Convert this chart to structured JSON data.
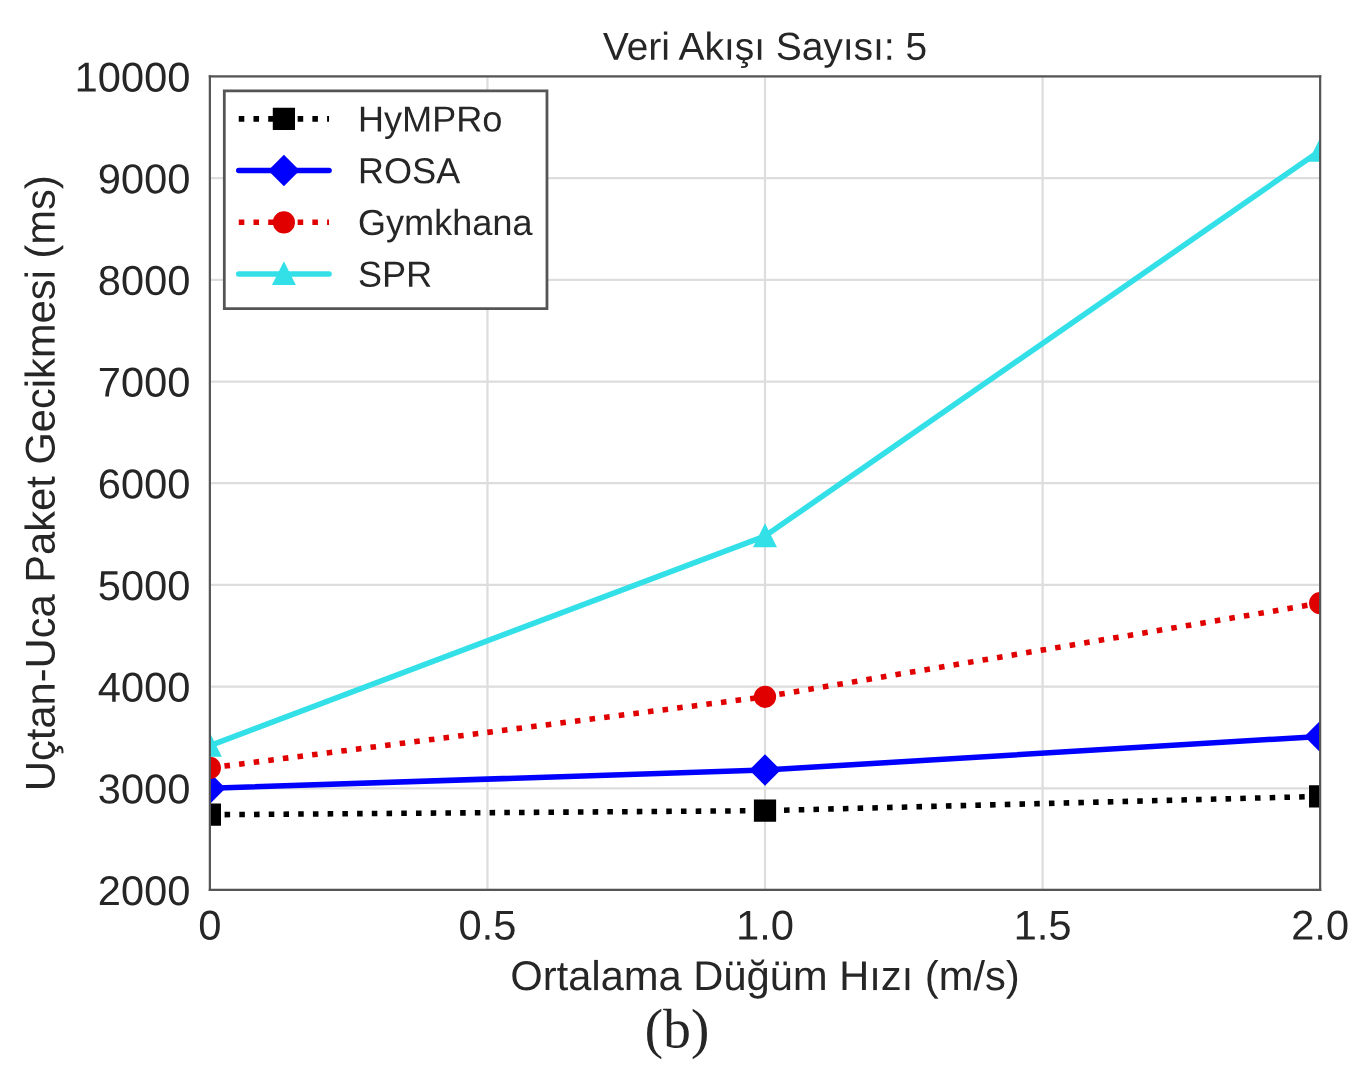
{
  "chart_data": {
    "type": "line",
    "title": "Veri Akışı Sayısı: 5",
    "xlabel": "Ortalama Düğüm Hızı (m/s)",
    "ylabel": "Uçtan-Uca Paket Gecikmesi (ms)",
    "annotations": [
      "(b)"
    ],
    "x": [
      0,
      1.0,
      2.0
    ],
    "series": [
      {
        "name": "HyMPRo",
        "color": "#000000",
        "values": [
          2740,
          2780,
          2920
        ],
        "marker": "square",
        "line_style": "dotted"
      },
      {
        "name": "ROSA",
        "color": "#0000ff",
        "values": [
          3000,
          3180,
          3510
        ],
        "marker": "diamond",
        "line_style": "solid"
      },
      {
        "name": "Gymkhana",
        "color": "#e00000",
        "values": [
          3200,
          3900,
          4820
        ],
        "marker": "circle",
        "line_style": "dotted"
      },
      {
        "name": "SPR",
        "color": "#33e0e8",
        "values": [
          3420,
          5480,
          9270
        ],
        "marker": "triangle",
        "line_style": "solid"
      }
    ],
    "xlim": [
      0,
      2.0
    ],
    "ylim": [
      2000,
      10000
    ],
    "xticks": [
      {
        "value": 0,
        "label": "0"
      },
      0.5,
      {
        "value": 1.0,
        "label": "1.0"
      },
      1.5,
      {
        "value": 2.0,
        "label": "2.0"
      }
    ],
    "yticks": [
      2000,
      3000,
      4000,
      5000,
      6000,
      7000,
      8000,
      9000,
      10000
    ],
    "grid": true,
    "legend": "top left"
  }
}
